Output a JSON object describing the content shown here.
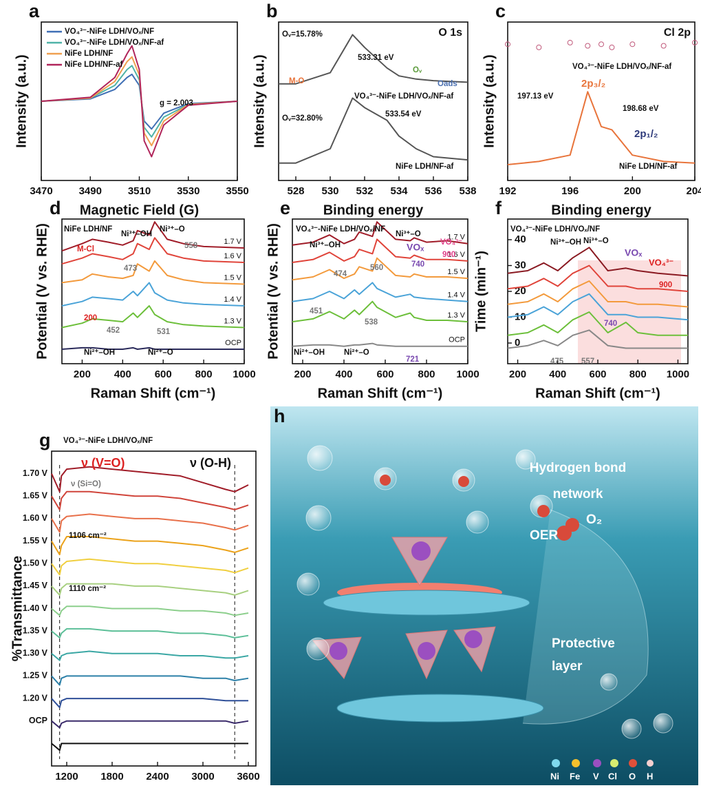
{
  "chart_data": [
    {
      "type": "line",
      "panel": "a",
      "xlabel": "Magnetic Field (G)",
      "ylabel": "Intensity (a.u.)",
      "xlim": [
        3470,
        3550
      ],
      "xticks": [
        3470,
        3490,
        3510,
        3530,
        3550
      ],
      "ylim": [
        -1,
        1
      ],
      "legend": "upper left",
      "annotations": [
        "g = 2.003"
      ],
      "x": [
        3470,
        3490,
        3500,
        3505,
        3507,
        3510,
        3512,
        3515,
        3520,
        3530,
        3550
      ],
      "series": [
        {
          "name": "VO₄³⁻-NiFe LDH/VOₓ/NF",
          "color": "#3f6fb5",
          "values": [
            0,
            0.03,
            0.15,
            0.3,
            0.34,
            0.2,
            -0.25,
            -0.35,
            -0.15,
            -0.03,
            0
          ]
        },
        {
          "name": "VO₄³⁻-NiFe LDH/VOₓ/NF-af",
          "color": "#4fb3a7",
          "values": [
            0,
            0.04,
            0.2,
            0.4,
            0.45,
            0.27,
            -0.33,
            -0.45,
            -0.2,
            -0.04,
            0
          ]
        },
        {
          "name": "NiFe LDH/NF",
          "color": "#f0a050",
          "values": [
            0,
            0.04,
            0.25,
            0.5,
            0.56,
            0.33,
            -0.4,
            -0.56,
            -0.25,
            -0.04,
            0
          ]
        },
        {
          "name": "NiFe LDH/NF-af",
          "color": "#b0245a",
          "values": [
            0,
            0.05,
            0.3,
            0.6,
            0.7,
            0.4,
            -0.5,
            -0.7,
            -0.3,
            -0.05,
            0
          ]
        }
      ]
    },
    {
      "type": "line",
      "panel": "b",
      "xlabel": "Binding energy",
      "ylabel": "Intensity (a.u.)",
      "xlim": [
        527,
        538
      ],
      "xticks": [
        528,
        530,
        532,
        534,
        536,
        538
      ],
      "ylim": [
        0,
        10
      ],
      "annotations": [
        "O 1s",
        "Oᵥ=15.78%",
        "533.31 eV",
        "M-O",
        "Oᵥ",
        "Oads",
        "VO₄³⁻-NiFe LDH/VOₓ/NF-af",
        "Oᵥ=32.80%",
        "533.54 eV",
        "NiFe LDH/NF-af"
      ],
      "x": [
        527,
        528,
        530,
        531.3,
        532,
        533.3,
        534,
        535,
        536,
        538
      ],
      "series": [
        {
          "color": "#555",
          "values": [
            6.1,
            6.1,
            6.8,
            9.2,
            8.4,
            7.1,
            6.6,
            6.4,
            6.3,
            6.2
          ]
        },
        {
          "color": "#555",
          "values": [
            1.1,
            1.1,
            2.0,
            5.2,
            4.6,
            3.8,
            2.8,
            2.0,
            1.5,
            1.3
          ]
        }
      ]
    },
    {
      "type": "line",
      "panel": "c",
      "xlabel": "Binding energy",
      "ylabel": "Intensity (a.u.)",
      "xlim": [
        192,
        204
      ],
      "xticks": [
        192,
        196,
        200,
        204
      ],
      "ylim": [
        0,
        10
      ],
      "annotations": [
        "Cl 2p",
        "VO₄³⁻-NiFe LDH/VOₓ/NF-af",
        "197.13 eV",
        "2p₃/₂",
        "198.68 eV",
        "2p₁/₂",
        "NiFe LDH/NF-af"
      ],
      "x": [
        192,
        194,
        196,
        197.13,
        198,
        198.68,
        200,
        202,
        204
      ],
      "series": [
        {
          "color": "#c0587a",
          "style": "markers",
          "values": [
            8.6,
            8.4,
            8.7,
            8.5,
            8.6,
            8.4,
            8.6,
            8.5,
            8.7
          ]
        },
        {
          "color": "#e8743b",
          "values": [
            1.0,
            1.2,
            1.6,
            5.6,
            3.4,
            3.2,
            1.6,
            1.2,
            1.1
          ]
        }
      ]
    },
    {
      "type": "line",
      "panel": "d",
      "xlabel": "Raman Shift (cm⁻¹)",
      "ylabel": "Potential (V vs. RHE)",
      "xlim": [
        100,
        1000
      ],
      "xticks": [
        200,
        400,
        600,
        800,
        1000
      ],
      "ylim": [
        0,
        10
      ],
      "annotations": [
        "NiFe LDH/NF",
        "Ni³⁺–OH",
        "Ni³⁺–O",
        "M-Cl",
        "558",
        "473",
        "200",
        "452",
        "531",
        "Ni²⁺–OH",
        "Ni²⁺–O"
      ],
      "x": [
        100,
        200,
        250,
        330,
        400,
        452,
        473,
        531,
        558,
        620,
        700,
        800,
        1000
      ],
      "series": [
        {
          "name": "1.7 V",
          "color": "#a01c28",
          "values": [
            7.8,
            8.3,
            8.6,
            8.4,
            8.2,
            8.5,
            9.2,
            8.9,
            9.8,
            8.6,
            8.3,
            8.1,
            8.0
          ]
        },
        {
          "name": "1.6 V",
          "color": "#e0443a",
          "values": [
            6.9,
            7.3,
            7.6,
            7.4,
            7.2,
            7.6,
            8.3,
            7.9,
            8.7,
            7.6,
            7.3,
            7.1,
            7.0
          ]
        },
        {
          "name": "1.5 V",
          "color": "#f39a3c",
          "values": [
            5.6,
            5.8,
            6.2,
            6.0,
            5.9,
            6.1,
            6.9,
            6.4,
            7.1,
            6.1,
            5.8,
            5.6,
            5.5
          ]
        },
        {
          "name": "1.4 V",
          "color": "#4aa3d8",
          "values": [
            4.0,
            4.3,
            4.6,
            4.5,
            4.4,
            5.0,
            4.7,
            5.6,
            4.9,
            4.4,
            4.2,
            4.1,
            4.0
          ]
        },
        {
          "name": "1.3 V",
          "color": "#6cbf3a",
          "values": [
            2.5,
            2.8,
            3.1,
            3.0,
            2.9,
            3.5,
            3.2,
            4.0,
            3.4,
            2.9,
            2.7,
            2.6,
            2.5
          ]
        },
        {
          "name": "OCP",
          "color": "#2a2a5a",
          "values": [
            1.0,
            1.1,
            1.1,
            1.0,
            1.0,
            1.1,
            1.0,
            1.1,
            1.0,
            1.0,
            1.0,
            1.0,
            1.0
          ]
        }
      ]
    },
    {
      "type": "line",
      "panel": "e",
      "xlabel": "Raman Shift (cm⁻¹)",
      "ylabel": "Potential (V vs. RHE)",
      "xlim": [
        150,
        1000
      ],
      "xticks": [
        200,
        400,
        600,
        800,
        1000
      ],
      "ylim": [
        0,
        10
      ],
      "annotations": [
        "VO₄³⁻-NiFe LDH/VOₓ/NF",
        "Ni³⁺–OH",
        "Ni³⁺–O",
        "VOₓ",
        "740",
        "VO₄³⁻",
        "900",
        "474",
        "560",
        "451",
        "538",
        "Ni²⁺–OH",
        "Ni²⁺–O",
        "721"
      ],
      "x": [
        150,
        250,
        330,
        400,
        451,
        474,
        538,
        560,
        650,
        721,
        740,
        800,
        900,
        1000
      ],
      "series": [
        {
          "name": "1.7 V",
          "color": "#a01c28",
          "values": [
            8.2,
            8.4,
            8.9,
            8.3,
            8.6,
            9.1,
            8.8,
            9.8,
            8.6,
            8.5,
            8.7,
            8.4,
            8.5,
            8.3
          ]
        },
        {
          "name": "1.6 V",
          "color": "#e0443a",
          "values": [
            7.0,
            7.2,
            7.7,
            7.1,
            7.4,
            7.9,
            7.6,
            8.6,
            7.4,
            7.3,
            7.5,
            7.2,
            7.2,
            7.1
          ]
        },
        {
          "name": "1.5 V",
          "color": "#f39a3c",
          "values": [
            5.8,
            6.0,
            6.5,
            5.9,
            6.2,
            6.7,
            6.4,
            7.3,
            6.1,
            6.0,
            6.2,
            6.0,
            6.0,
            5.9
          ]
        },
        {
          "name": "1.4 V",
          "color": "#4aa3d8",
          "values": [
            4.3,
            4.5,
            5.0,
            4.5,
            5.1,
            4.8,
            5.6,
            5.2,
            4.6,
            4.8,
            4.6,
            4.5,
            4.4,
            4.3
          ]
        },
        {
          "name": "1.3 V",
          "color": "#6cbf3a",
          "values": [
            2.9,
            3.1,
            3.6,
            3.1,
            3.7,
            3.4,
            4.3,
            3.9,
            3.2,
            3.5,
            3.2,
            3.0,
            3.0,
            2.9
          ]
        },
        {
          "name": "OCP",
          "color": "#888",
          "values": [
            1.2,
            1.3,
            1.3,
            1.2,
            1.3,
            1.3,
            1.4,
            1.3,
            1.2,
            1.2,
            1.2,
            1.2,
            1.2,
            1.2
          ]
        }
      ]
    },
    {
      "type": "line",
      "panel": "f",
      "xlabel": "Raman Shift (cm⁻¹)",
      "ylabel": "Time (min⁻¹)",
      "xlim": [
        150,
        1050
      ],
      "xticks": [
        200,
        400,
        600,
        800,
        1000
      ],
      "ylim": [
        -8,
        48
      ],
      "yticks": [
        0,
        10,
        20,
        30,
        40
      ],
      "annotations": [
        "VO₄³⁻-NiFe LDH/VOₓ/NF",
        "Ni³⁺–OH",
        "Ni³⁺–O",
        "VOₓ",
        "VO₄³⁻",
        "900",
        "740",
        "475",
        "557"
      ],
      "x": [
        150,
        250,
        330,
        400,
        475,
        557,
        650,
        740,
        800,
        900,
        1050
      ],
      "series": [
        {
          "color": "#8a1a22",
          "values": [
            27,
            28,
            31,
            28,
            33,
            37,
            28,
            29,
            28,
            27,
            26
          ]
        },
        {
          "color": "#e0443a",
          "values": [
            21,
            22,
            25,
            22,
            27,
            30,
            22,
            22,
            21,
            21,
            20
          ]
        },
        {
          "color": "#f39a3c",
          "values": [
            15,
            16,
            19,
            16,
            21,
            24,
            16,
            16,
            15,
            15,
            14
          ]
        },
        {
          "color": "#4aa3d8",
          "values": [
            10,
            11,
            14,
            11,
            16,
            19,
            11,
            11,
            10,
            10,
            9
          ]
        },
        {
          "color": "#6cbf3a",
          "values": [
            3,
            4,
            7,
            4,
            9,
            12,
            4,
            8,
            4,
            3,
            3
          ]
        },
        {
          "color": "#888",
          "values": [
            -2,
            -1,
            1,
            -1,
            3,
            5,
            -1,
            -2,
            -2,
            -2,
            -2
          ]
        }
      ]
    },
    {
      "type": "line",
      "panel": "g",
      "xlabel": "Wavenumbers (cm⁻¹)",
      "ylabel": "%Transmittance",
      "xlim": [
        1000,
        3700
      ],
      "xticks": [
        1200,
        1800,
        2400,
        3000,
        3600
      ],
      "ylim": [
        0,
        14
      ],
      "annotations": [
        "VO₄³⁻-NiFe LDH/VOₓ/NF",
        "ν (V=O)",
        "ν (O-H)",
        "ν (Si=O)",
        "1106 cm⁻²",
        "1110 cm⁻²"
      ],
      "x": [
        1000,
        1106,
        1130,
        1200,
        1500,
        1800,
        2100,
        2400,
        2700,
        3000,
        3300,
        3420,
        3600
      ],
      "series": [
        {
          "name": "1.70 V",
          "color": "#a01c28",
          "values": [
            13.0,
            12.2,
            12.9,
            13.2,
            13.3,
            13.2,
            13.1,
            13.0,
            12.9,
            12.6,
            12.3,
            12.2,
            12.5
          ]
        },
        {
          "name": "1.65 V",
          "color": "#d0443a",
          "values": [
            12.0,
            11.4,
            11.9,
            12.2,
            12.2,
            12.1,
            12.0,
            12.0,
            11.9,
            11.7,
            11.5,
            11.4,
            11.6
          ]
        },
        {
          "name": "1.60 V",
          "color": "#e8704a",
          "values": [
            11.0,
            10.4,
            10.9,
            11.1,
            11.2,
            11.1,
            11.0,
            11.0,
            10.9,
            10.8,
            10.6,
            10.5,
            10.7
          ]
        },
        {
          "name": "1.55 V",
          "color": "#eba21a",
          "values": [
            10.0,
            9.4,
            9.8,
            10.2,
            10.2,
            10.1,
            10.0,
            10.0,
            9.9,
            9.8,
            9.6,
            9.5,
            9.7
          ]
        },
        {
          "name": "1.50 V",
          "color": "#f0cf40",
          "values": [
            9.0,
            8.5,
            8.9,
            9.1,
            9.2,
            9.1,
            9.0,
            9.0,
            8.9,
            8.8,
            8.7,
            8.6,
            8.8
          ]
        },
        {
          "name": "1.45 V",
          "color": "#a8d080",
          "values": [
            8.0,
            7.6,
            7.9,
            8.1,
            8.1,
            8.1,
            8.0,
            8.0,
            7.9,
            7.8,
            7.7,
            7.6,
            7.8
          ]
        },
        {
          "name": "1.40 V",
          "color": "#8ccf8c",
          "values": [
            7.0,
            6.7,
            6.9,
            7.1,
            7.1,
            7.0,
            7.0,
            7.0,
            6.9,
            6.9,
            6.8,
            6.7,
            6.8
          ]
        },
        {
          "name": "1.35 V",
          "color": "#5cbf98",
          "values": [
            6.0,
            5.7,
            5.9,
            6.1,
            6.1,
            6.0,
            6.0,
            6.0,
            5.9,
            5.9,
            5.8,
            5.7,
            5.8
          ]
        },
        {
          "name": "1.30 V",
          "color": "#3aa7a4",
          "values": [
            5.0,
            4.7,
            4.9,
            5.0,
            5.1,
            5.0,
            5.0,
            5.0,
            4.9,
            4.9,
            4.8,
            4.8,
            4.9
          ]
        },
        {
          "name": "1.25 V",
          "color": "#2c80a8",
          "values": [
            4.0,
            3.6,
            3.9,
            4.0,
            4.0,
            4.0,
            4.0,
            4.0,
            4.0,
            3.9,
            3.9,
            3.8,
            3.9
          ]
        },
        {
          "name": "1.20 V",
          "color": "#2e4f98",
          "values": [
            3.0,
            2.6,
            2.9,
            3.0,
            3.0,
            3.0,
            3.0,
            3.0,
            3.0,
            3.0,
            2.9,
            2.9,
            2.9
          ]
        },
        {
          "name": "OCP",
          "color": "#3a2a6a",
          "values": [
            2.0,
            1.7,
            1.9,
            2.0,
            2.0,
            2.0,
            2.0,
            2.0,
            2.0,
            2.0,
            2.0,
            1.9,
            2.0
          ]
        },
        {
          "color": "#111",
          "values": [
            1.0,
            0.7,
            1.0,
            1.0,
            1.0,
            1.0,
            1.0,
            1.0,
            1.0,
            1.0,
            1.0,
            1.0,
            1.0
          ]
        }
      ]
    }
  ],
  "illustration": {
    "panel": "h",
    "labels": [
      "Hydrogen bond",
      "network",
      "OER",
      "O₂",
      "Protective",
      "layer"
    ],
    "legend": [
      "Ni",
      "Fe",
      "V",
      "Cl",
      "O",
      "H"
    ]
  }
}
